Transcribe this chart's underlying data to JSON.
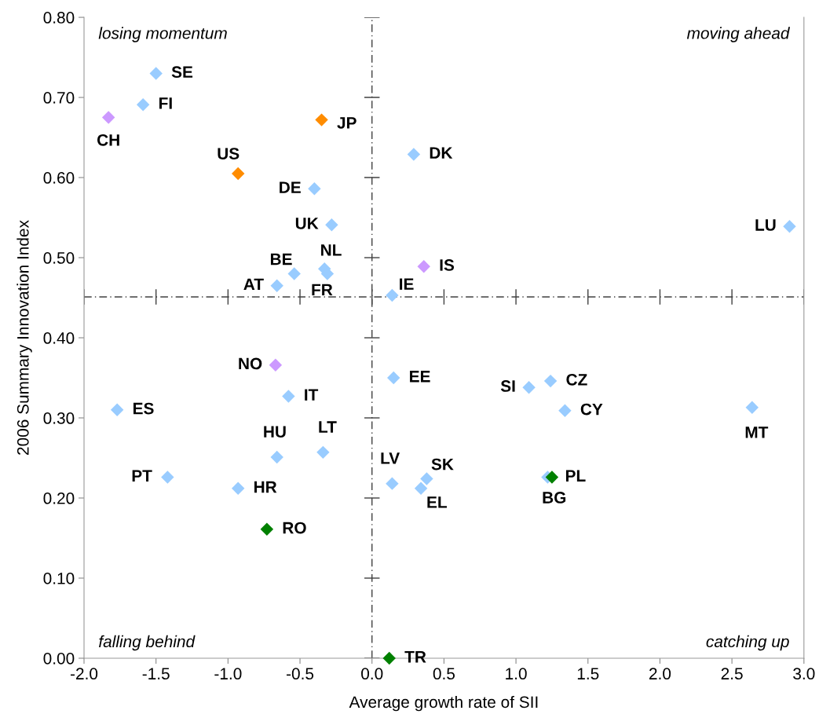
{
  "chart_data": {
    "type": "scatter",
    "xlabel": "Average growth rate of SII",
    "ylabel": "2006 Summary Innovation Index",
    "xlim": [
      -2.0,
      3.0
    ],
    "xticks": [
      {
        "value": -2.0,
        "label": "-2.0"
      },
      {
        "value": -1.5,
        "label": "-1.5"
      },
      {
        "value": -1.0,
        "label": "-1.0"
      },
      {
        "value": -0.5,
        "label": "-0.5"
      },
      {
        "value": 0.0,
        "label": "0.0"
      },
      {
        "value": 0.5,
        "label": "0.5"
      },
      {
        "value": 1.0,
        "label": "1.0"
      },
      {
        "value": 1.5,
        "label": "1.5"
      },
      {
        "value": 2.0,
        "label": "2.0"
      },
      {
        "value": 2.5,
        "label": "2.5"
      },
      {
        "value": 3.0,
        "label": "3.0"
      }
    ],
    "ylim": [
      0.0,
      0.8
    ],
    "yticks": [
      {
        "value": 0.0,
        "label": "0.00"
      },
      {
        "value": 0.1,
        "label": "0.10"
      },
      {
        "value": 0.2,
        "label": "0.20"
      },
      {
        "value": 0.3,
        "label": "0.30"
      },
      {
        "value": 0.4,
        "label": "0.40"
      },
      {
        "value": 0.5,
        "label": "0.50"
      },
      {
        "value": 0.6,
        "label": "0.60"
      },
      {
        "value": 0.7,
        "label": "0.70"
      },
      {
        "value": 0.8,
        "label": "0.80"
      }
    ],
    "grid": false,
    "legend": false,
    "marker": "diamond",
    "ref_lines": [
      {
        "axis": "x",
        "value": 0.0,
        "color": "#404040",
        "line_style": "dashed"
      },
      {
        "axis": "y",
        "value": 0.451,
        "color": "#404040",
        "line_style": "dashed"
      }
    ],
    "series": [
      {
        "x": [
          -1.5,
          -1.59,
          -1.83,
          -0.35,
          -0.93,
          0.29,
          -0.4,
          -0.28,
          2.9,
          -0.33,
          -0.31,
          -0.54,
          -0.66,
          0.36,
          0.14,
          -0.67,
          0.15,
          -0.58,
          -1.77,
          1.24,
          1.09,
          1.34,
          2.64,
          -0.66,
          -0.34,
          -1.42,
          -0.93,
          0.14,
          0.38,
          0.34,
          1.22,
          1.25,
          -0.73,
          0.12
        ],
        "values": [
          0.73,
          0.691,
          0.675,
          0.672,
          0.605,
          0.629,
          0.586,
          0.541,
          0.539,
          0.486,
          0.48,
          0.48,
          0.465,
          0.489,
          0.453,
          0.366,
          0.35,
          0.327,
          0.31,
          0.346,
          0.338,
          0.309,
          0.313,
          0.251,
          0.257,
          0.226,
          0.212,
          0.218,
          0.224,
          0.212,
          0.226,
          0.226,
          0.161,
          0.0
        ],
        "colors": [
          "#99ccff",
          "#99ccff",
          "#cc99ff",
          "#ff8c00",
          "#ff8c00",
          "#99ccff",
          "#99ccff",
          "#99ccff",
          "#99ccff",
          "#99ccff",
          "#99ccff",
          "#99ccff",
          "#99ccff",
          "#cc99ff",
          "#99ccff",
          "#cc99ff",
          "#99ccff",
          "#99ccff",
          "#99ccff",
          "#99ccff",
          "#99ccff",
          "#99ccff",
          "#99ccff",
          "#99ccff",
          "#99ccff",
          "#99ccff",
          "#99ccff",
          "#99ccff",
          "#99ccff",
          "#99ccff",
          "#99ccff",
          "#008000",
          "#008000",
          "#008000"
        ]
      }
    ],
    "annotations": [
      "losing momentum",
      "moving ahead",
      "falling behind",
      "catching up",
      {
        "text": "SE",
        "x": -1.5,
        "y": 0.73
      },
      {
        "text": "FI",
        "x": -1.59,
        "y": 0.691
      },
      {
        "text": "CH",
        "x": -1.83,
        "y": 0.675
      },
      {
        "text": "JP",
        "x": -0.35,
        "y": 0.672
      },
      {
        "text": "US",
        "x": -0.93,
        "y": 0.605
      },
      {
        "text": "DK",
        "x": 0.29,
        "y": 0.629
      },
      {
        "text": "DE",
        "x": -0.4,
        "y": 0.586
      },
      {
        "text": "UK",
        "x": -0.28,
        "y": 0.541
      },
      {
        "text": "LU",
        "x": 2.9,
        "y": 0.539
      },
      {
        "text": "NL",
        "x": -0.33,
        "y": 0.486
      },
      {
        "text": "FR",
        "x": -0.31,
        "y": 0.48
      },
      {
        "text": "BE",
        "x": -0.54,
        "y": 0.48
      },
      {
        "text": "AT",
        "x": -0.66,
        "y": 0.465
      },
      {
        "text": "IS",
        "x": 0.36,
        "y": 0.489
      },
      {
        "text": "IE",
        "x": 0.14,
        "y": 0.453
      },
      {
        "text": "NO",
        "x": -0.67,
        "y": 0.366
      },
      {
        "text": "EE",
        "x": 0.15,
        "y": 0.35
      },
      {
        "text": "IT",
        "x": -0.58,
        "y": 0.327
      },
      {
        "text": "ES",
        "x": -1.77,
        "y": 0.31
      },
      {
        "text": "CZ",
        "x": 1.24,
        "y": 0.346
      },
      {
        "text": "SI",
        "x": 1.09,
        "y": 0.338
      },
      {
        "text": "CY",
        "x": 1.34,
        "y": 0.309
      },
      {
        "text": "MT",
        "x": 2.64,
        "y": 0.313
      },
      {
        "text": "HU",
        "x": -0.66,
        "y": 0.251
      },
      {
        "text": "LT",
        "x": -0.34,
        "y": 0.257
      },
      {
        "text": "PT",
        "x": -1.42,
        "y": 0.226
      },
      {
        "text": "HR",
        "x": -0.93,
        "y": 0.212
      },
      {
        "text": "LV",
        "x": 0.14,
        "y": 0.218
      },
      {
        "text": "SK",
        "x": 0.38,
        "y": 0.224
      },
      {
        "text": "EL",
        "x": 0.34,
        "y": 0.212
      },
      {
        "text": "BG",
        "x": 1.22,
        "y": 0.226
      },
      {
        "text": "PL",
        "x": 1.25,
        "y": 0.226
      },
      {
        "text": "RO",
        "x": -0.73,
        "y": 0.161
      },
      {
        "text": "TR",
        "x": 0.12,
        "y": 0.0
      }
    ]
  }
}
